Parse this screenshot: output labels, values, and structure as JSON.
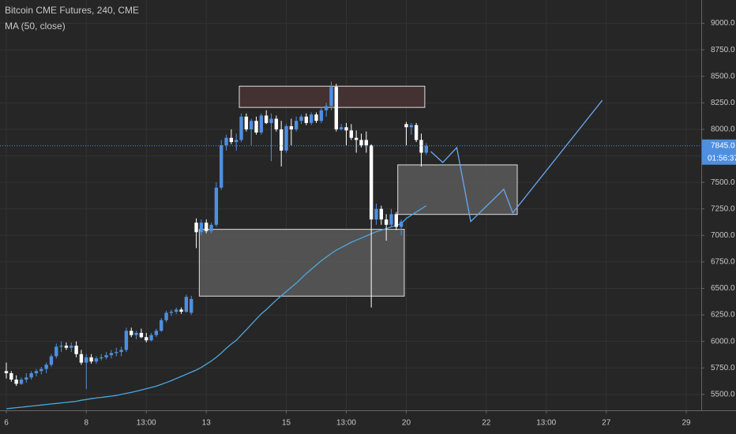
{
  "chart_data": {
    "type": "candlestick",
    "title": "Bitcoin CME Futures, 240, CME",
    "subtitle": "MA (50, close)",
    "up_color": "#4f8fe0",
    "down_color": "#ffffff",
    "open": [
      5720,
      5700,
      5640,
      5600,
      5640,
      5660,
      5700,
      5720,
      5740,
      5780,
      5860,
      5950,
      5960,
      5940,
      5960,
      5880,
      5800,
      5850,
      5810,
      5840,
      5850,
      5870,
      5890,
      5900,
      5920,
      6100,
      6060,
      6080,
      6040,
      6010,
      6060,
      6100,
      6200,
      6270,
      6280,
      6300,
      6280,
      6270,
      7120,
      7030,
      7120,
      7040,
      7100,
      7450,
      7850,
      7920,
      7880,
      7900,
      8120,
      8000,
      8080,
      7970,
      8130,
      8060,
      8100,
      8000,
      7800,
      8030,
      8000,
      8080,
      8120,
      8060,
      8140,
      8080,
      8180,
      8220,
      8400,
      8000,
      8020,
      7990,
      7920,
      7900,
      7900,
      7850,
      7150,
      7250,
      7150,
      7100,
      7200,
      7080,
      8050,
      8020,
      8040,
      7900,
      7780
    ],
    "high": [
      5800,
      5720,
      5680,
      5660,
      5700,
      5720,
      5740,
      5760,
      5800,
      5880,
      5980,
      6000,
      5990,
      5990,
      6000,
      5920,
      5880,
      5880,
      5860,
      5880,
      5900,
      5920,
      5940,
      5950,
      6130,
      6130,
      6100,
      6120,
      6080,
      6080,
      6120,
      6220,
      6290,
      6300,
      6320,
      6320,
      6440,
      6430,
      7160,
      7150,
      7150,
      7120,
      7500,
      7900,
      7950,
      8000,
      7960,
      8150,
      8150,
      8100,
      8120,
      8150,
      8180,
      8150,
      8130,
      8080,
      8050,
      8100,
      8120,
      8140,
      8150,
      8160,
      8160,
      8200,
      8250,
      8450,
      8430,
      8050,
      8060,
      8050,
      7990,
      7960,
      7980,
      7860,
      7300,
      7280,
      7200,
      7250,
      7220,
      7150,
      8070,
      8060,
      8060,
      7960,
      7870
    ],
    "low": [
      5650,
      5620,
      5580,
      5590,
      5610,
      5640,
      5670,
      5690,
      5700,
      5760,
      5840,
      5900,
      5920,
      5900,
      5850,
      5780,
      5550,
      5790,
      5790,
      5820,
      5830,
      5840,
      5860,
      5860,
      5900,
      6040,
      6020,
      6030,
      5990,
      6000,
      6040,
      6090,
      6180,
      6240,
      6260,
      6260,
      6270,
      6250,
      6880,
      7000,
      7020,
      7020,
      7080,
      7430,
      7800,
      7860,
      7800,
      7880,
      7980,
      7850,
      7950,
      7950,
      8050,
      7700,
      7980,
      7650,
      7780,
      7850,
      7980,
      8050,
      8040,
      8040,
      8060,
      8060,
      8120,
      8180,
      7980,
      7990,
      7850,
      7900,
      7780,
      7830,
      7780,
      6320,
      7100,
      7100,
      6950,
      7080,
      7050,
      7000,
      7850,
      7950,
      7880,
      7650,
      7760
    ],
    "close": [
      5700,
      5640,
      5600,
      5640,
      5660,
      5700,
      5720,
      5740,
      5780,
      5860,
      5950,
      5960,
      5940,
      5960,
      5880,
      5800,
      5850,
      5810,
      5840,
      5850,
      5870,
      5890,
      5900,
      5920,
      6100,
      6060,
      6080,
      6040,
      6010,
      6060,
      6100,
      6200,
      6270,
      6280,
      6300,
      6280,
      6420,
      6400,
      7030,
      7120,
      7040,
      7100,
      7450,
      7850,
      7920,
      7880,
      7900,
      8120,
      8000,
      8080,
      7970,
      8130,
      8060,
      8100,
      8000,
      7800,
      8030,
      8000,
      8080,
      8120,
      8060,
      8140,
      8080,
      8180,
      8220,
      8400,
      8000,
      8020,
      7990,
      7920,
      7900,
      7850,
      7850,
      7150,
      7250,
      7150,
      7100,
      7200,
      7080,
      7130,
      8020,
      8040,
      7900,
      7780,
      7845
    ],
    "ma": {
      "color": "#4aa8e0",
      "values": [
        5365,
        5370,
        5375,
        5380,
        5385,
        5390,
        5395,
        5400,
        5405,
        5410,
        5415,
        5420,
        5425,
        5430,
        5435,
        5445,
        5452,
        5460,
        5466,
        5472,
        5478,
        5484,
        5490,
        5500,
        5510,
        5520,
        5530,
        5542,
        5554,
        5566,
        5578,
        5595,
        5612,
        5630,
        5650,
        5670,
        5690,
        5710,
        5730,
        5755,
        5785,
        5815,
        5850,
        5890,
        5935,
        5975,
        6010,
        6060,
        6110,
        6160,
        6210,
        6260,
        6300,
        6345,
        6390,
        6430,
        6470,
        6510,
        6550,
        6595,
        6640,
        6680,
        6720,
        6760,
        6795,
        6830,
        6860,
        6885,
        6910,
        6935,
        6955,
        6975,
        6995,
        7015,
        7035,
        7050,
        7065,
        7080,
        7095,
        7110,
        7160,
        7190,
        7220,
        7250,
        7280
      ]
    },
    "projection": {
      "color": "#6aa8f0",
      "x": [
        84.9,
        87.3,
        90.1,
        92.9,
        99.5,
        101.3,
        119.2
      ],
      "values": [
        7791,
        7688,
        7828,
        7131,
        7435,
        7213,
        8273
      ]
    },
    "boxes": [
      {
        "x0": 46.6,
        "x1": 83.7,
        "y0": 8207,
        "y1": 8407,
        "color": "#4a3434"
      },
      {
        "x0": 38.6,
        "x1": 79.6,
        "y0": 6427,
        "y1": 7057,
        "color": "#5a5a5a"
      },
      {
        "x0": 78.3,
        "x1": 102.2,
        "y0": 7198,
        "y1": 7665,
        "color": "#5a5a5a"
      }
    ],
    "last_price": {
      "value": 7845,
      "label": "7845.0"
    },
    "countdown": "01:56:37",
    "xlim": [
      -1.26,
      139
    ],
    "xticks": [
      {
        "value": 0,
        "label": "6"
      },
      {
        "value": 16,
        "label": "8"
      },
      {
        "value": 28,
        "label": "13:00"
      },
      {
        "value": 40,
        "label": "13"
      },
      {
        "value": 56,
        "label": "15"
      },
      {
        "value": 68,
        "label": "13:00"
      },
      {
        "value": 80,
        "label": "20"
      },
      {
        "value": 96,
        "label": "22"
      },
      {
        "value": 108,
        "label": "13:00"
      },
      {
        "value": 120,
        "label": "27"
      },
      {
        "value": 136,
        "label": "29"
      }
    ],
    "ylim": [
      5350,
      9220
    ],
    "yticks": [
      {
        "value": 5500,
        "label": "5500.0"
      },
      {
        "value": 5750,
        "label": "5750.0"
      },
      {
        "value": 6000,
        "label": "6000.0"
      },
      {
        "value": 6250,
        "label": "6250.0"
      },
      {
        "value": 6500,
        "label": "6500.0"
      },
      {
        "value": 6750,
        "label": "6750.0"
      },
      {
        "value": 7000,
        "label": "7000.0"
      },
      {
        "value": 7250,
        "label": "7250.0"
      },
      {
        "value": 7500,
        "label": "7500.0"
      },
      {
        "value": 7750,
        "label": "7750.0"
      },
      {
        "value": 8000,
        "label": "8000.0"
      },
      {
        "value": 8250,
        "label": "8250.0"
      },
      {
        "value": 8500,
        "label": "8500.0"
      },
      {
        "value": 8750,
        "label": "8750.0"
      },
      {
        "value": 9000,
        "label": "9000.0"
      }
    ],
    "grid": true
  }
}
